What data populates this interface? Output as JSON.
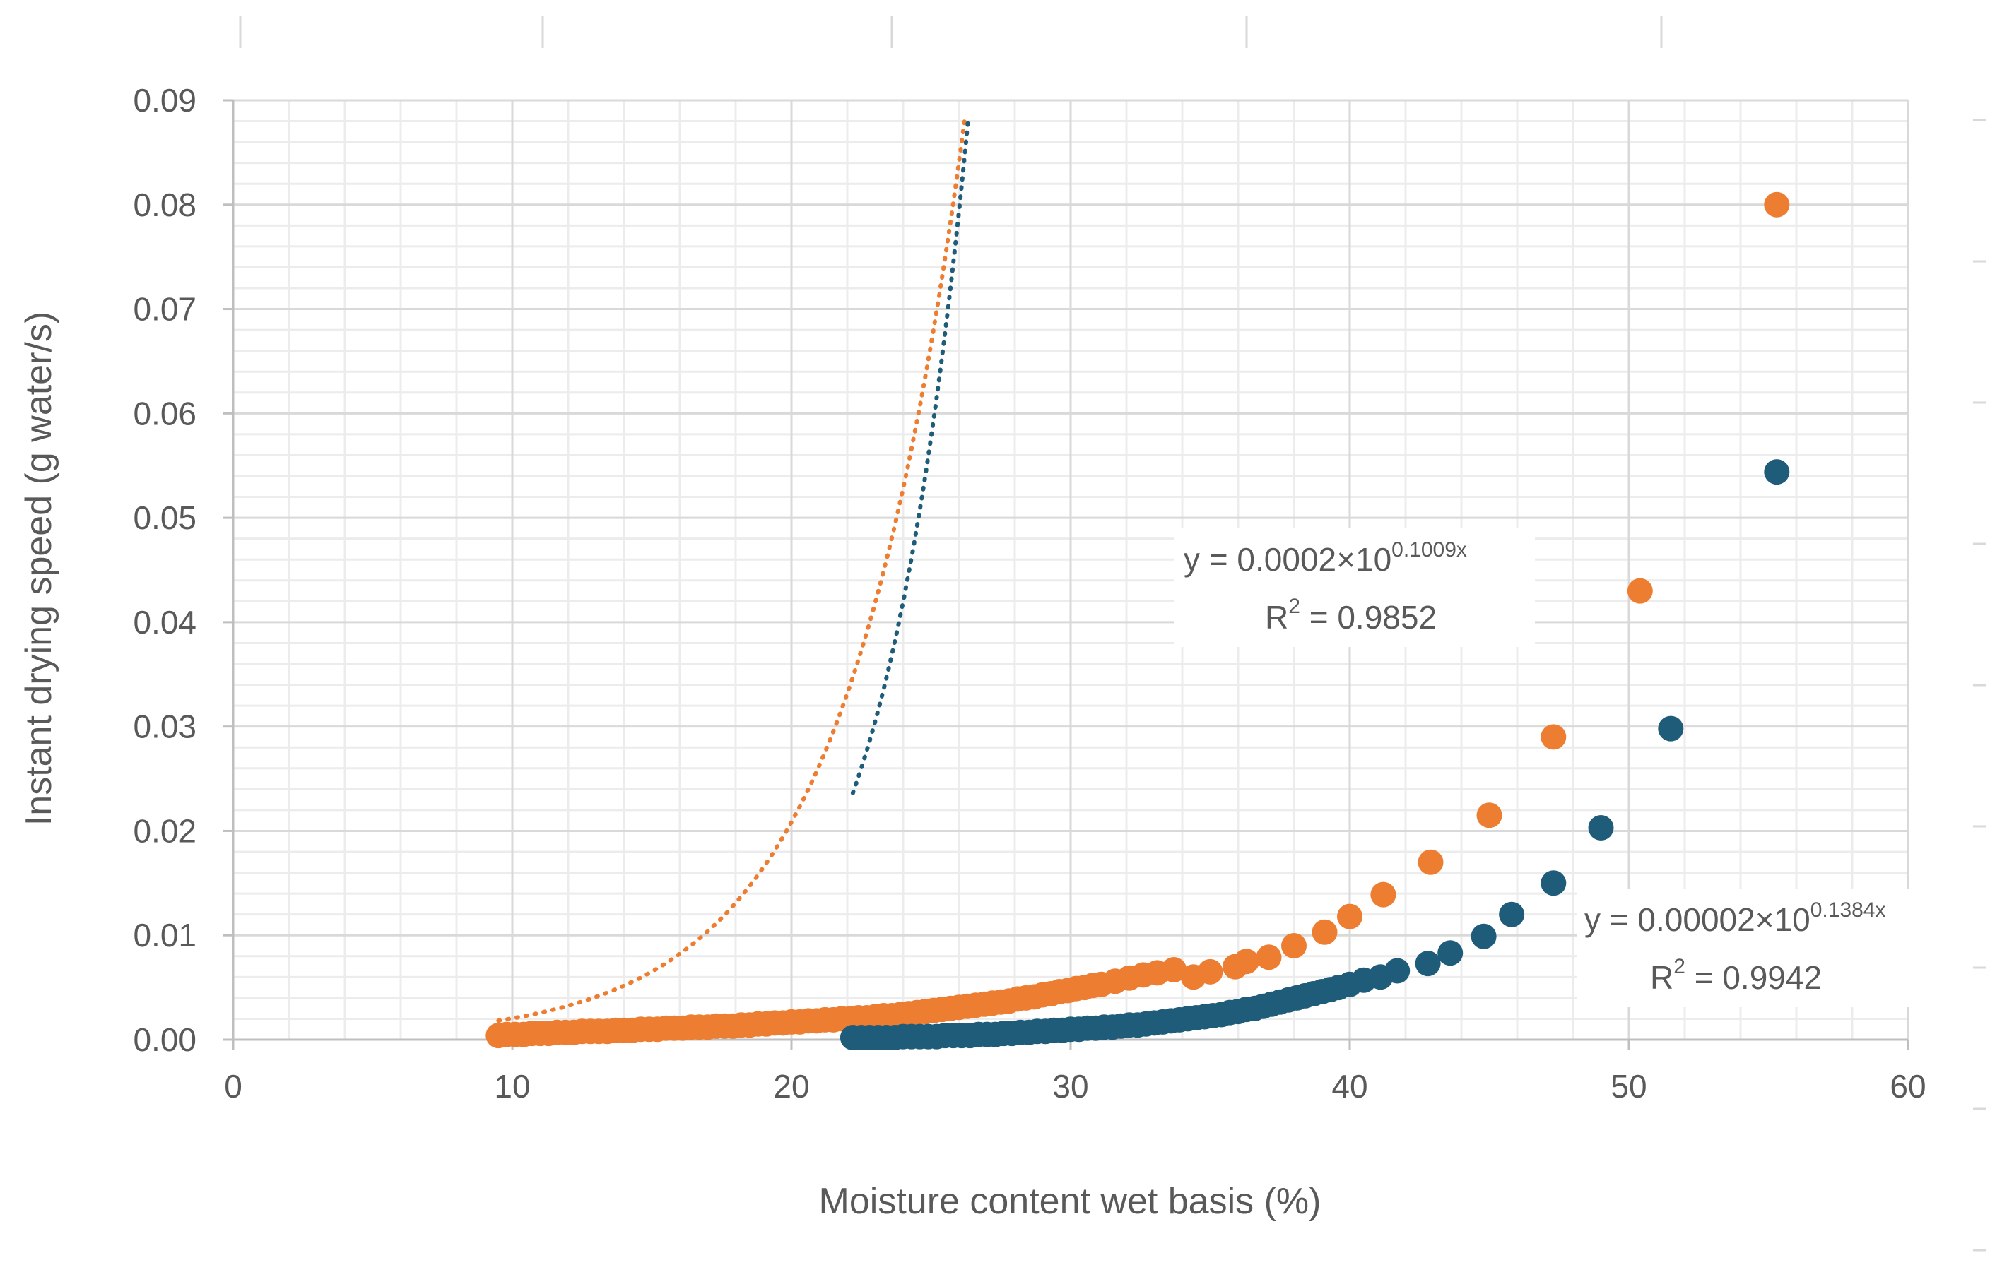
{
  "chart_data": {
    "type": "scatter",
    "title": "",
    "xlabel": "Moisture content wet basis (%)",
    "ylabel": "Instant drying speed (g water/s)",
    "xlim": [
      0,
      60
    ],
    "ylim": [
      0,
      0.09
    ],
    "x_ticks": [
      "0",
      "10",
      "20",
      "30",
      "40",
      "50",
      "60"
    ],
    "y_ticks": [
      "0.00",
      "0.01",
      "0.02",
      "0.03",
      "0.04",
      "0.05",
      "0.06",
      "0.07",
      "0.08",
      "0.09"
    ],
    "grid": "major and minor",
    "legend": "none",
    "series": [
      {
        "color": "#ED7D31",
        "trendline": {
          "type": "exponential",
          "a": 0.0002,
          "b": 0.1009,
          "equation_prefix": "y = 0.0002×10",
          "equation_exponent": "0.1009x",
          "r2_prefix": "R",
          "r2_sup": "2",
          "r2_value": " = 0.9852"
        },
        "points": [
          [
            9.5,
            0.0004
          ],
          [
            9.8,
            0.0005
          ],
          [
            10.1,
            0.0005
          ],
          [
            10.4,
            0.0005
          ],
          [
            10.7,
            0.0006
          ],
          [
            11.0,
            0.0006
          ],
          [
            11.3,
            0.0006
          ],
          [
            11.6,
            0.0007
          ],
          [
            11.9,
            0.0007
          ],
          [
            12.2,
            0.0007
          ],
          [
            12.5,
            0.0008
          ],
          [
            12.8,
            0.0008
          ],
          [
            13.1,
            0.0008
          ],
          [
            13.4,
            0.0008
          ],
          [
            13.7,
            0.0009
          ],
          [
            14.0,
            0.0009
          ],
          [
            14.3,
            0.0009
          ],
          [
            14.6,
            0.001
          ],
          [
            14.9,
            0.001
          ],
          [
            15.2,
            0.001
          ],
          [
            15.5,
            0.0011
          ],
          [
            15.8,
            0.0011
          ],
          [
            16.1,
            0.0011
          ],
          [
            16.4,
            0.0012
          ],
          [
            16.7,
            0.0012
          ],
          [
            17.0,
            0.0012
          ],
          [
            17.3,
            0.0013
          ],
          [
            17.6,
            0.0013
          ],
          [
            17.9,
            0.0013
          ],
          [
            18.2,
            0.0014
          ],
          [
            18.5,
            0.0014
          ],
          [
            18.8,
            0.0015
          ],
          [
            19.1,
            0.0015
          ],
          [
            19.4,
            0.0016
          ],
          [
            19.7,
            0.0016
          ],
          [
            20.0,
            0.0017
          ],
          [
            20.3,
            0.0017
          ],
          [
            20.6,
            0.0018
          ],
          [
            20.9,
            0.0018
          ],
          [
            21.2,
            0.0019
          ],
          [
            21.5,
            0.0019
          ],
          [
            21.8,
            0.002
          ],
          [
            22.1,
            0.002
          ],
          [
            22.4,
            0.0021
          ],
          [
            22.7,
            0.0021
          ],
          [
            23.0,
            0.0022
          ],
          [
            23.3,
            0.0023
          ],
          [
            23.6,
            0.0023
          ],
          [
            23.9,
            0.0024
          ],
          [
            24.2,
            0.0025
          ],
          [
            24.5,
            0.0026
          ],
          [
            24.8,
            0.0027
          ],
          [
            25.1,
            0.0028
          ],
          [
            25.4,
            0.0029
          ],
          [
            25.7,
            0.003
          ],
          [
            26.0,
            0.0031
          ],
          [
            26.3,
            0.0032
          ],
          [
            26.6,
            0.0033
          ],
          [
            26.9,
            0.0034
          ],
          [
            27.2,
            0.0035
          ],
          [
            27.5,
            0.0036
          ],
          [
            27.8,
            0.0037
          ],
          [
            28.1,
            0.0039
          ],
          [
            28.4,
            0.004
          ],
          [
            28.7,
            0.0041
          ],
          [
            29.0,
            0.0043
          ],
          [
            29.3,
            0.0044
          ],
          [
            29.6,
            0.0046
          ],
          [
            29.9,
            0.0047
          ],
          [
            30.2,
            0.0049
          ],
          [
            30.5,
            0.005
          ],
          [
            30.8,
            0.0052
          ],
          [
            31.1,
            0.0053
          ],
          [
            31.6,
            0.0056
          ],
          [
            32.1,
            0.0059
          ],
          [
            32.6,
            0.0062
          ],
          [
            33.1,
            0.0064
          ],
          [
            33.7,
            0.0067
          ],
          [
            34.4,
            0.006
          ],
          [
            35.0,
            0.0065
          ],
          [
            35.9,
            0.007
          ],
          [
            36.3,
            0.0075
          ],
          [
            37.1,
            0.0079
          ],
          [
            38.0,
            0.009
          ],
          [
            39.1,
            0.0103
          ],
          [
            40.0,
            0.0118
          ],
          [
            41.2,
            0.0139
          ],
          [
            42.9,
            0.017
          ],
          [
            45.0,
            0.0215
          ],
          [
            47.3,
            0.029
          ],
          [
            50.4,
            0.043
          ],
          [
            55.3,
            0.08
          ]
        ]
      },
      {
        "color": "#1F5C7A",
        "trendline": {
          "type": "exponential",
          "a": 2e-05,
          "b": 0.1384,
          "equation_prefix": "y = 0.00002×10",
          "equation_exponent": "0.1384x",
          "r2_prefix": "R",
          "r2_sup": "2",
          "r2_value": " = 0.9942"
        },
        "points": [
          [
            22.2,
            0.0002
          ],
          [
            22.5,
            0.0002
          ],
          [
            22.8,
            0.0002
          ],
          [
            23.1,
            0.0002
          ],
          [
            23.4,
            0.0002
          ],
          [
            23.7,
            0.0002
          ],
          [
            24.0,
            0.0003
          ],
          [
            24.3,
            0.0003
          ],
          [
            24.6,
            0.0003
          ],
          [
            24.9,
            0.0003
          ],
          [
            25.2,
            0.0003
          ],
          [
            25.5,
            0.0004
          ],
          [
            25.8,
            0.0004
          ],
          [
            26.1,
            0.0004
          ],
          [
            26.4,
            0.0004
          ],
          [
            26.7,
            0.0005
          ],
          [
            27.0,
            0.0005
          ],
          [
            27.3,
            0.0005
          ],
          [
            27.6,
            0.0006
          ],
          [
            27.9,
            0.0006
          ],
          [
            28.2,
            0.0007
          ],
          [
            28.5,
            0.0007
          ],
          [
            28.8,
            0.0008
          ],
          [
            29.1,
            0.0008
          ],
          [
            29.4,
            0.0009
          ],
          [
            29.7,
            0.0009
          ],
          [
            30.0,
            0.001
          ],
          [
            30.3,
            0.001
          ],
          [
            30.6,
            0.0011
          ],
          [
            30.9,
            0.0011
          ],
          [
            31.2,
            0.0012
          ],
          [
            31.5,
            0.0012
          ],
          [
            31.8,
            0.0013
          ],
          [
            32.1,
            0.0014
          ],
          [
            32.4,
            0.0014
          ],
          [
            32.7,
            0.0015
          ],
          [
            33.0,
            0.0016
          ],
          [
            33.3,
            0.0017
          ],
          [
            33.6,
            0.0018
          ],
          [
            33.9,
            0.0019
          ],
          [
            34.2,
            0.002
          ],
          [
            34.5,
            0.0021
          ],
          [
            34.8,
            0.0022
          ],
          [
            35.1,
            0.0023
          ],
          [
            35.4,
            0.0024
          ],
          [
            35.7,
            0.0026
          ],
          [
            36.0,
            0.0027
          ],
          [
            36.3,
            0.0029
          ],
          [
            36.6,
            0.003
          ],
          [
            36.9,
            0.0032
          ],
          [
            37.2,
            0.0034
          ],
          [
            37.5,
            0.0036
          ],
          [
            37.8,
            0.0038
          ],
          [
            38.1,
            0.004
          ],
          [
            38.4,
            0.0042
          ],
          [
            38.7,
            0.0044
          ],
          [
            39.0,
            0.0046
          ],
          [
            39.3,
            0.0048
          ],
          [
            39.6,
            0.005
          ],
          [
            40.0,
            0.0053
          ],
          [
            40.5,
            0.0057
          ],
          [
            41.1,
            0.006
          ],
          [
            41.7,
            0.0066
          ],
          [
            42.8,
            0.0073
          ],
          [
            43.6,
            0.0083
          ],
          [
            44.8,
            0.0099
          ],
          [
            45.8,
            0.012
          ],
          [
            47.3,
            0.015
          ],
          [
            49.0,
            0.0203
          ],
          [
            51.5,
            0.0298
          ],
          [
            55.3,
            0.0544
          ]
        ]
      }
    ]
  },
  "axis_label_x": "Moisture content wet basis (%)",
  "axis_label_y": "Instant drying speed (g water/s)"
}
